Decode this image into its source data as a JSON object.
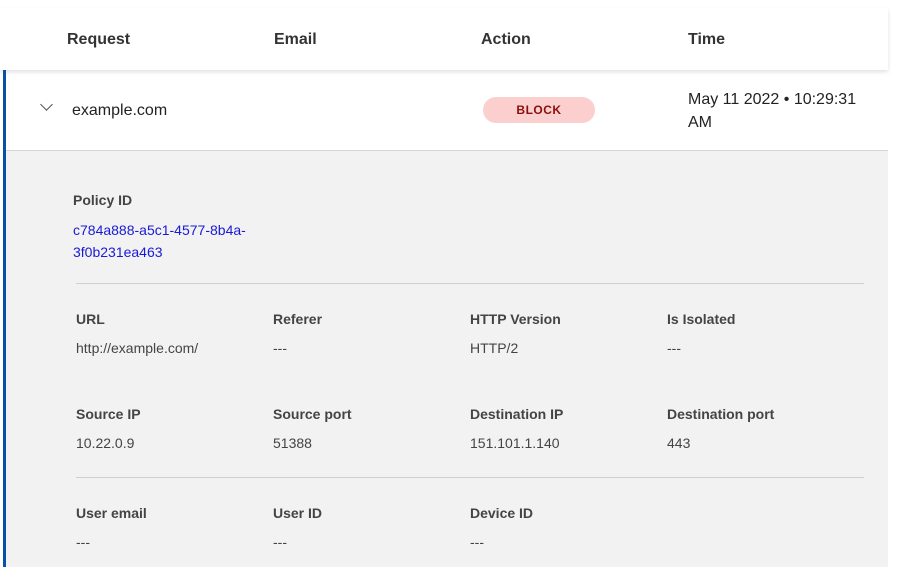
{
  "header": {
    "columns": [
      "Request",
      "Email",
      "Action",
      "Time"
    ]
  },
  "row": {
    "request": "example.com",
    "action": "BLOCK",
    "time": "May 11 2022 • 10:29:31 AM"
  },
  "details": {
    "policy_label": "Policy ID",
    "policy_id": "c784a888-a5c1-4577-8b4a-3f0b231ea463",
    "fields": [
      {
        "label": "URL",
        "value": "http://example.com/"
      },
      {
        "label": "Referer",
        "value": "---"
      },
      {
        "label": "HTTP Version",
        "value": "HTTP/2"
      },
      {
        "label": "Is Isolated",
        "value": "---"
      },
      {
        "label": "Source IP",
        "value": "10.22.0.9"
      },
      {
        "label": "Source port",
        "value": "51388"
      },
      {
        "label": "Destination IP",
        "value": "151.101.1.140"
      },
      {
        "label": "Destination port",
        "value": "443"
      },
      {
        "label": "User email",
        "value": "---"
      },
      {
        "label": "User ID",
        "value": "---"
      },
      {
        "label": "Device ID",
        "value": "---"
      }
    ]
  },
  "colors": {
    "accent": "#0b4fa8",
    "block_bg": "#fccfcf",
    "block_text": "#8b0e0e",
    "link": "#1a1ad6"
  }
}
